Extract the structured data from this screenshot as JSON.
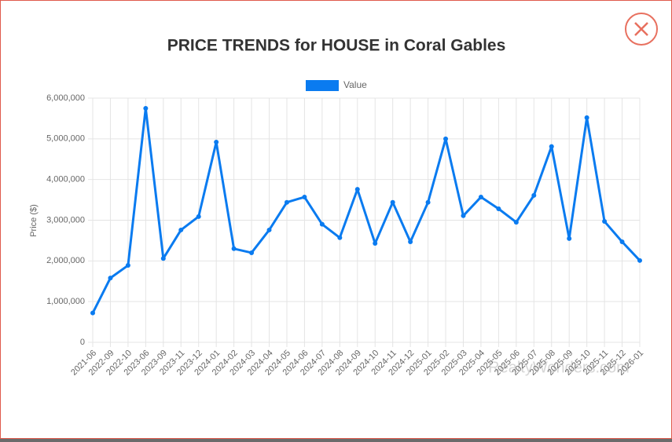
{
  "chart_data": {
    "type": "line",
    "title": "PRICE TRENDS for HOUSE in Coral Gables",
    "y_label": "Price ($)",
    "watermark": "RealtyWonders.com",
    "categories": [
      "2021-06",
      "2022-09",
      "2022-10",
      "2023-06",
      "2023-09",
      "2023-11",
      "2023-12",
      "2024-01",
      "2024-02",
      "2024-03",
      "2024-04",
      "2024-05",
      "2024-06",
      "2024-07",
      "2024-08",
      "2024-09",
      "2024-10",
      "2024-11",
      "2024-12",
      "2025-01",
      "2025-02",
      "2025-03",
      "2025-04",
      "2025-05",
      "2025-06",
      "2025-07",
      "2025-08",
      "2025-09",
      "2025-10",
      "2025-11",
      "2025-12",
      "2026-01"
    ],
    "series": [
      {
        "name": "Value",
        "color": "#0a7bf0",
        "values": [
          720000,
          1580000,
          1890000,
          5750000,
          2060000,
          2760000,
          3090000,
          4920000,
          2300000,
          2200000,
          2760000,
          3440000,
          3570000,
          2900000,
          2570000,
          3760000,
          2430000,
          3440000,
          2470000,
          3440000,
          5000000,
          3110000,
          3570000,
          3280000,
          2950000,
          3610000,
          4810000,
          2550000,
          5520000,
          2970000,
          2470000,
          2010000
        ]
      }
    ],
    "ylim": [
      0,
      6000000
    ],
    "yticks": [
      0,
      {
        "value": 1000000,
        "label": "1,000,000"
      },
      {
        "value": 2000000,
        "label": "2,000,000"
      },
      {
        "value": 3000000,
        "label": "3,000,000"
      },
      {
        "value": 4000000,
        "label": "4,000,000"
      },
      {
        "value": 5000000,
        "label": "5,000,000"
      },
      {
        "value": 6000000,
        "label": "6,000,000"
      }
    ],
    "grid": true
  }
}
